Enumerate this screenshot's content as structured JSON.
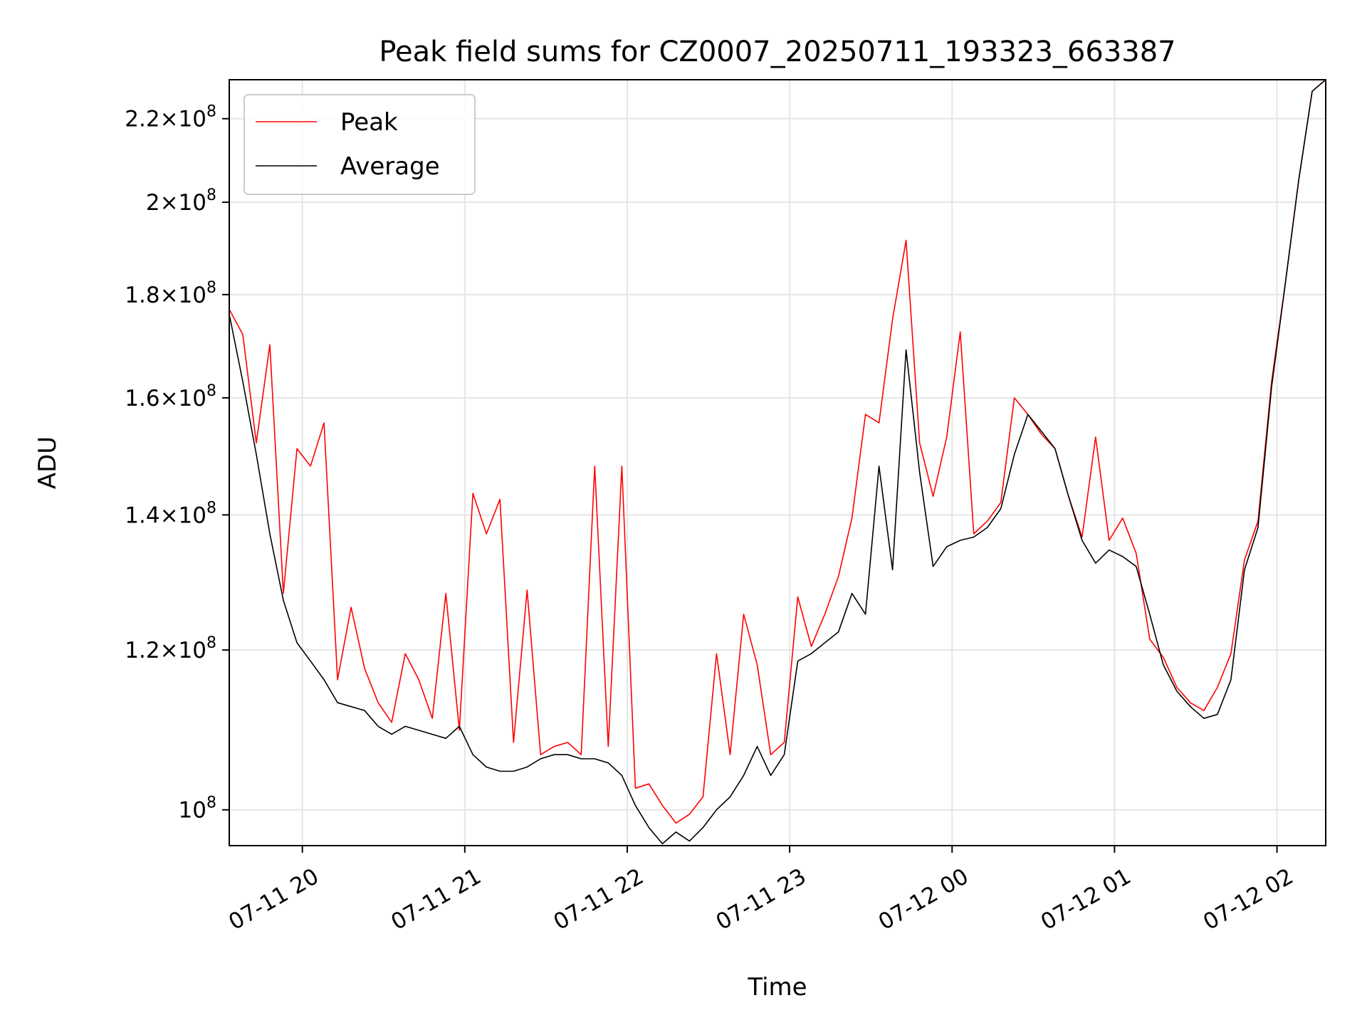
{
  "chart_data": {
    "type": "line",
    "title": "Peak field sums for CZ0007_20250711_193323_663387",
    "xlabel": "Time",
    "ylabel": "ADU",
    "y_scale": "log",
    "grid": true,
    "legend_position": "upper-left",
    "xlim": [
      "2025-07-11 19:33",
      "2025-07-12 02:18"
    ],
    "ylim": [
      96000000,
      230000000
    ],
    "x_ticks": [
      {
        "value": "2025-07-11 20:00",
        "label": "07-11 20"
      },
      {
        "value": "2025-07-11 21:00",
        "label": "07-11 21"
      },
      {
        "value": "2025-07-11 22:00",
        "label": "07-11 22"
      },
      {
        "value": "2025-07-11 23:00",
        "label": "07-11 23"
      },
      {
        "value": "2025-07-12 00:00",
        "label": "07-12 00"
      },
      {
        "value": "2025-07-12 01:00",
        "label": "07-12 01"
      },
      {
        "value": "2025-07-12 02:00",
        "label": "07-12 02"
      }
    ],
    "y_ticks": [
      {
        "value": 100000000,
        "mantissa": "",
        "exponent": "8"
      },
      {
        "value": 120000000,
        "mantissa": "1.2",
        "exponent": "8"
      },
      {
        "value": 140000000,
        "mantissa": "1.4",
        "exponent": "8"
      },
      {
        "value": 160000000,
        "mantissa": "1.6",
        "exponent": "8"
      },
      {
        "value": 180000000,
        "mantissa": "1.8",
        "exponent": "8"
      },
      {
        "value": 200000000,
        "mantissa": "2",
        "exponent": "8"
      },
      {
        "value": 220000000,
        "mantissa": "2.2",
        "exponent": "8"
      }
    ],
    "series": [
      {
        "name": "Average",
        "color": "#000000",
        "x": [
          "2025-07-11 19:33",
          "2025-07-11 19:38",
          "2025-07-11 19:43",
          "2025-07-11 19:48",
          "2025-07-11 19:53",
          "2025-07-11 19:58",
          "2025-07-11 20:03",
          "2025-07-11 20:08",
          "2025-07-11 20:13",
          "2025-07-11 20:18",
          "2025-07-11 20:23",
          "2025-07-11 20:28",
          "2025-07-11 20:33",
          "2025-07-11 20:38",
          "2025-07-11 20:43",
          "2025-07-11 20:48",
          "2025-07-11 20:53",
          "2025-07-11 20:58",
          "2025-07-11 21:03",
          "2025-07-11 21:08",
          "2025-07-11 21:13",
          "2025-07-11 21:18",
          "2025-07-11 21:23",
          "2025-07-11 21:28",
          "2025-07-11 21:33",
          "2025-07-11 21:38",
          "2025-07-11 21:43",
          "2025-07-11 21:48",
          "2025-07-11 21:53",
          "2025-07-11 21:58",
          "2025-07-11 22:03",
          "2025-07-11 22:08",
          "2025-07-11 22:13",
          "2025-07-11 22:18",
          "2025-07-11 22:23",
          "2025-07-11 22:28",
          "2025-07-11 22:33",
          "2025-07-11 22:38",
          "2025-07-11 22:43",
          "2025-07-11 22:48",
          "2025-07-11 22:53",
          "2025-07-11 22:58",
          "2025-07-11 23:03",
          "2025-07-11 23:08",
          "2025-07-11 23:13",
          "2025-07-11 23:18",
          "2025-07-11 23:23",
          "2025-07-11 23:28",
          "2025-07-11 23:33",
          "2025-07-11 23:38",
          "2025-07-11 23:43",
          "2025-07-11 23:48",
          "2025-07-11 23:53",
          "2025-07-11 23:58",
          "2025-07-12 00:03",
          "2025-07-12 00:08",
          "2025-07-12 00:13",
          "2025-07-12 00:18",
          "2025-07-12 00:23",
          "2025-07-12 00:28",
          "2025-07-12 00:33",
          "2025-07-12 00:38",
          "2025-07-12 00:43",
          "2025-07-12 00:48",
          "2025-07-12 00:53",
          "2025-07-12 00:58",
          "2025-07-12 01:03",
          "2025-07-12 01:08",
          "2025-07-12 01:13",
          "2025-07-12 01:18",
          "2025-07-12 01:23",
          "2025-07-12 01:28",
          "2025-07-12 01:33",
          "2025-07-12 01:38",
          "2025-07-12 01:43",
          "2025-07-12 01:48",
          "2025-07-12 01:53",
          "2025-07-12 01:58",
          "2025-07-12 02:03",
          "2025-07-12 02:08",
          "2025-07-12 02:13",
          "2025-07-12 02:18"
        ],
        "values": [
          176000000,
          163000000,
          150000000,
          137000000,
          127000000,
          121000000,
          118500000,
          116000000,
          113000000,
          112500000,
          112000000,
          110000000,
          109000000,
          110000000,
          109500000,
          109000000,
          108500000,
          110000000,
          106500000,
          105000000,
          104500000,
          104500000,
          105000000,
          106000000,
          106500000,
          106500000,
          106000000,
          106000000,
          105500000,
          104000000,
          100500000,
          98000000,
          96200000,
          97500000,
          96500000,
          98000000,
          100000000,
          101500000,
          104000000,
          107500000,
          104000000,
          106500000,
          118500000,
          119500000,
          121000000,
          122500000,
          128000000,
          125000000,
          148000000,
          131500000,
          169000000,
          147000000,
          132000000,
          135000000,
          136000000,
          136500000,
          138000000,
          141000000,
          150000000,
          157000000,
          154000000,
          151000000,
          143000000,
          136000000,
          132500000,
          134500000,
          133500000,
          132000000,
          125000000,
          118000000,
          114500000,
          112500000,
          111000000,
          111500000,
          116000000,
          131500000,
          138000000,
          162000000,
          182000000,
          205000000,
          227000000,
          230000000
        ]
      },
      {
        "name": "Peak",
        "color": "#ff0000",
        "x": [
          "2025-07-11 19:33",
          "2025-07-11 19:38",
          "2025-07-11 19:43",
          "2025-07-11 19:48",
          "2025-07-11 19:53",
          "2025-07-11 19:58",
          "2025-07-11 20:03",
          "2025-07-11 20:08",
          "2025-07-11 20:13",
          "2025-07-11 20:18",
          "2025-07-11 20:23",
          "2025-07-11 20:28",
          "2025-07-11 20:33",
          "2025-07-11 20:38",
          "2025-07-11 20:43",
          "2025-07-11 20:48",
          "2025-07-11 20:53",
          "2025-07-11 20:58",
          "2025-07-11 21:03",
          "2025-07-11 21:08",
          "2025-07-11 21:13",
          "2025-07-11 21:18",
          "2025-07-11 21:23",
          "2025-07-11 21:28",
          "2025-07-11 21:33",
          "2025-07-11 21:38",
          "2025-07-11 21:43",
          "2025-07-11 21:48",
          "2025-07-11 21:53",
          "2025-07-11 21:58",
          "2025-07-11 22:03",
          "2025-07-11 22:08",
          "2025-07-11 22:13",
          "2025-07-11 22:18",
          "2025-07-11 22:23",
          "2025-07-11 22:28",
          "2025-07-11 22:33",
          "2025-07-11 22:38",
          "2025-07-11 22:43",
          "2025-07-11 22:48",
          "2025-07-11 22:53",
          "2025-07-11 22:58",
          "2025-07-11 23:03",
          "2025-07-11 23:08",
          "2025-07-11 23:13",
          "2025-07-11 23:18",
          "2025-07-11 23:23",
          "2025-07-11 23:28",
          "2025-07-11 23:33",
          "2025-07-11 23:38",
          "2025-07-11 23:43",
          "2025-07-11 23:48",
          "2025-07-11 23:53",
          "2025-07-11 23:58",
          "2025-07-12 00:03",
          "2025-07-12 00:08",
          "2025-07-12 00:13",
          "2025-07-12 00:18",
          "2025-07-12 00:23",
          "2025-07-12 00:28",
          "2025-07-12 00:33",
          "2025-07-12 00:38",
          "2025-07-12 00:43",
          "2025-07-12 00:48",
          "2025-07-12 00:53",
          "2025-07-12 00:58",
          "2025-07-12 01:03",
          "2025-07-12 01:08",
          "2025-07-12 01:13",
          "2025-07-12 01:18",
          "2025-07-12 01:23",
          "2025-07-12 01:28",
          "2025-07-12 01:33",
          "2025-07-12 01:38",
          "2025-07-12 01:43",
          "2025-07-12 01:48",
          "2025-07-12 01:53",
          "2025-07-12 01:58",
          "2025-07-12 02:03",
          "2025-07-12 02:08",
          "2025-07-12 02:13",
          "2025-07-12 02:18"
        ],
        "values": [
          177000000,
          172000000,
          152000000,
          170000000,
          128000000,
          151000000,
          148000000,
          155500000,
          116000000,
          126000000,
          117500000,
          113000000,
          110500000,
          119500000,
          116000000,
          111000000,
          128000000,
          109500000,
          143500000,
          137000000,
          142500000,
          108000000,
          128500000,
          106500000,
          107500000,
          108000000,
          106500000,
          148000000,
          107500000,
          148000000,
          102500000,
          103000000,
          100500000,
          98500000,
          99500000,
          101500000,
          119500000,
          106500000,
          125000000,
          118000000,
          106500000,
          108000000,
          127500000,
          120500000,
          125000000,
          130500000,
          139500000,
          157000000,
          155500000,
          175000000,
          191500000,
          152000000,
          143000000,
          153000000,
          172500000,
          137000000,
          139000000,
          142000000,
          160000000,
          157000000,
          153500000,
          151000000,
          143000000,
          136500000,
          153000000,
          136000000,
          139500000,
          134000000,
          121500000,
          119000000,
          115000000,
          113000000,
          112000000,
          115000000,
          119500000,
          133000000,
          139000000,
          163000000,
          182000000,
          205000000,
          227000000,
          230000000
        ]
      }
    ]
  }
}
